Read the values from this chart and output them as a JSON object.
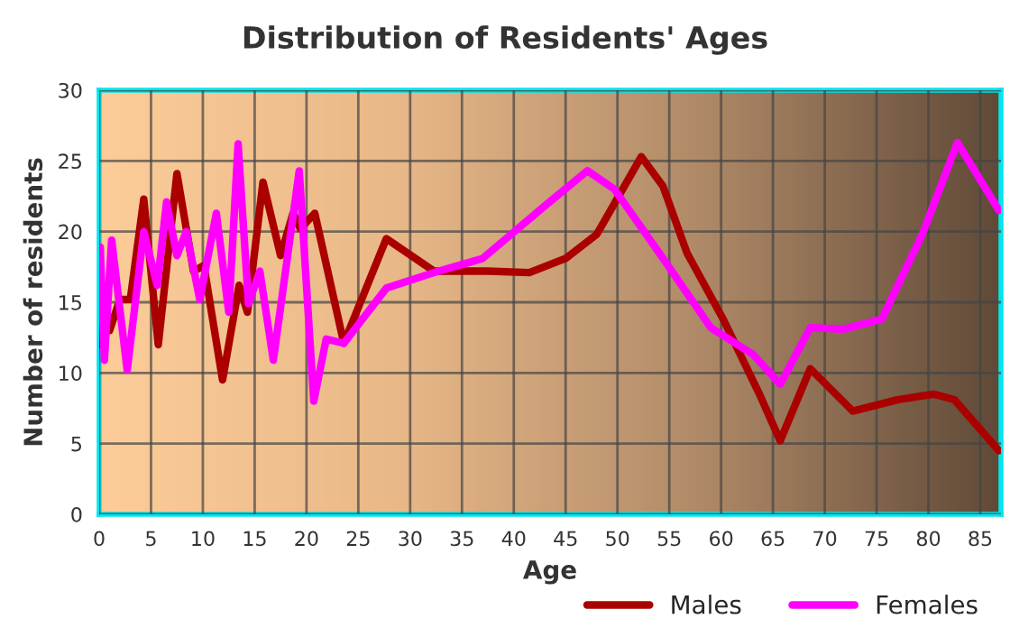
{
  "chart_data": {
    "type": "line",
    "title": "Distribution of Residents' Ages",
    "xlabel": "Age",
    "ylabel": "Number of residents",
    "xlim": [
      0,
      87
    ],
    "ylim": [
      0,
      30
    ],
    "xticks": [
      0,
      5,
      10,
      15,
      20,
      25,
      30,
      35,
      40,
      45,
      50,
      55,
      60,
      65,
      70,
      75,
      80,
      85
    ],
    "yticks": [
      0,
      5,
      10,
      15,
      20,
      25,
      30
    ],
    "grid": true,
    "legend": "bottom",
    "line_style": "solid",
    "marker": "none",
    "series": [
      {
        "name": "Males",
        "color": "#aa0000",
        "x": [
          0,
          0.5,
          1,
          2,
          3,
          4.3,
          5.7,
          7.5,
          9.1,
          10.1,
          11.9,
          13.5,
          14.3,
          15.8,
          17.5,
          18.7,
          19.4,
          20.8,
          23.6,
          27.7,
          32.3,
          37.5,
          41.5,
          45,
          48,
          52.3,
          54.4,
          56.7,
          60.2,
          63.7,
          65.7,
          68.6,
          72.7,
          77,
          80.5,
          82.5,
          86.8
        ],
        "values": [
          12,
          15.3,
          13,
          15.2,
          15.2,
          22.3,
          12,
          24.1,
          17.2,
          17.6,
          9.5,
          16.2,
          14.3,
          23.5,
          18.3,
          21.3,
          20.2,
          21.3,
          12.1,
          19.5,
          17.2,
          17.2,
          17.1,
          18.1,
          19.8,
          25.3,
          23.2,
          18.5,
          13.8,
          8.5,
          5.2,
          10.3,
          7.3,
          8.1,
          8.5,
          8.1,
          4.5
        ]
      },
      {
        "name": "Females",
        "color": "#ff00ff",
        "x": [
          0.1,
          0.5,
          1.2,
          2.7,
          4.3,
          5.6,
          6.5,
          7.5,
          8.4,
          9.7,
          11.3,
          12.5,
          13.4,
          14.4,
          15.5,
          16.8,
          19.3,
          20.7,
          21.9,
          23.6,
          27.7,
          32.3,
          37,
          42.8,
          47.1,
          49.7,
          54.4,
          59,
          63.1,
          65.7,
          68.6,
          71.8,
          75.5,
          79.4,
          82.8,
          86.8
        ],
        "values": [
          18.9,
          10.9,
          19.4,
          10.2,
          20,
          16.2,
          22.1,
          18.3,
          20,
          15.2,
          21.3,
          14.3,
          26.2,
          14.9,
          17.2,
          10.9,
          24.3,
          8,
          12.4,
          12.1,
          16,
          17.1,
          18.1,
          21.7,
          24.3,
          23,
          18.1,
          13.2,
          11.3,
          9.2,
          13.2,
          13.1,
          13.8,
          19.8,
          26.3,
          21.5
        ]
      }
    ]
  }
}
